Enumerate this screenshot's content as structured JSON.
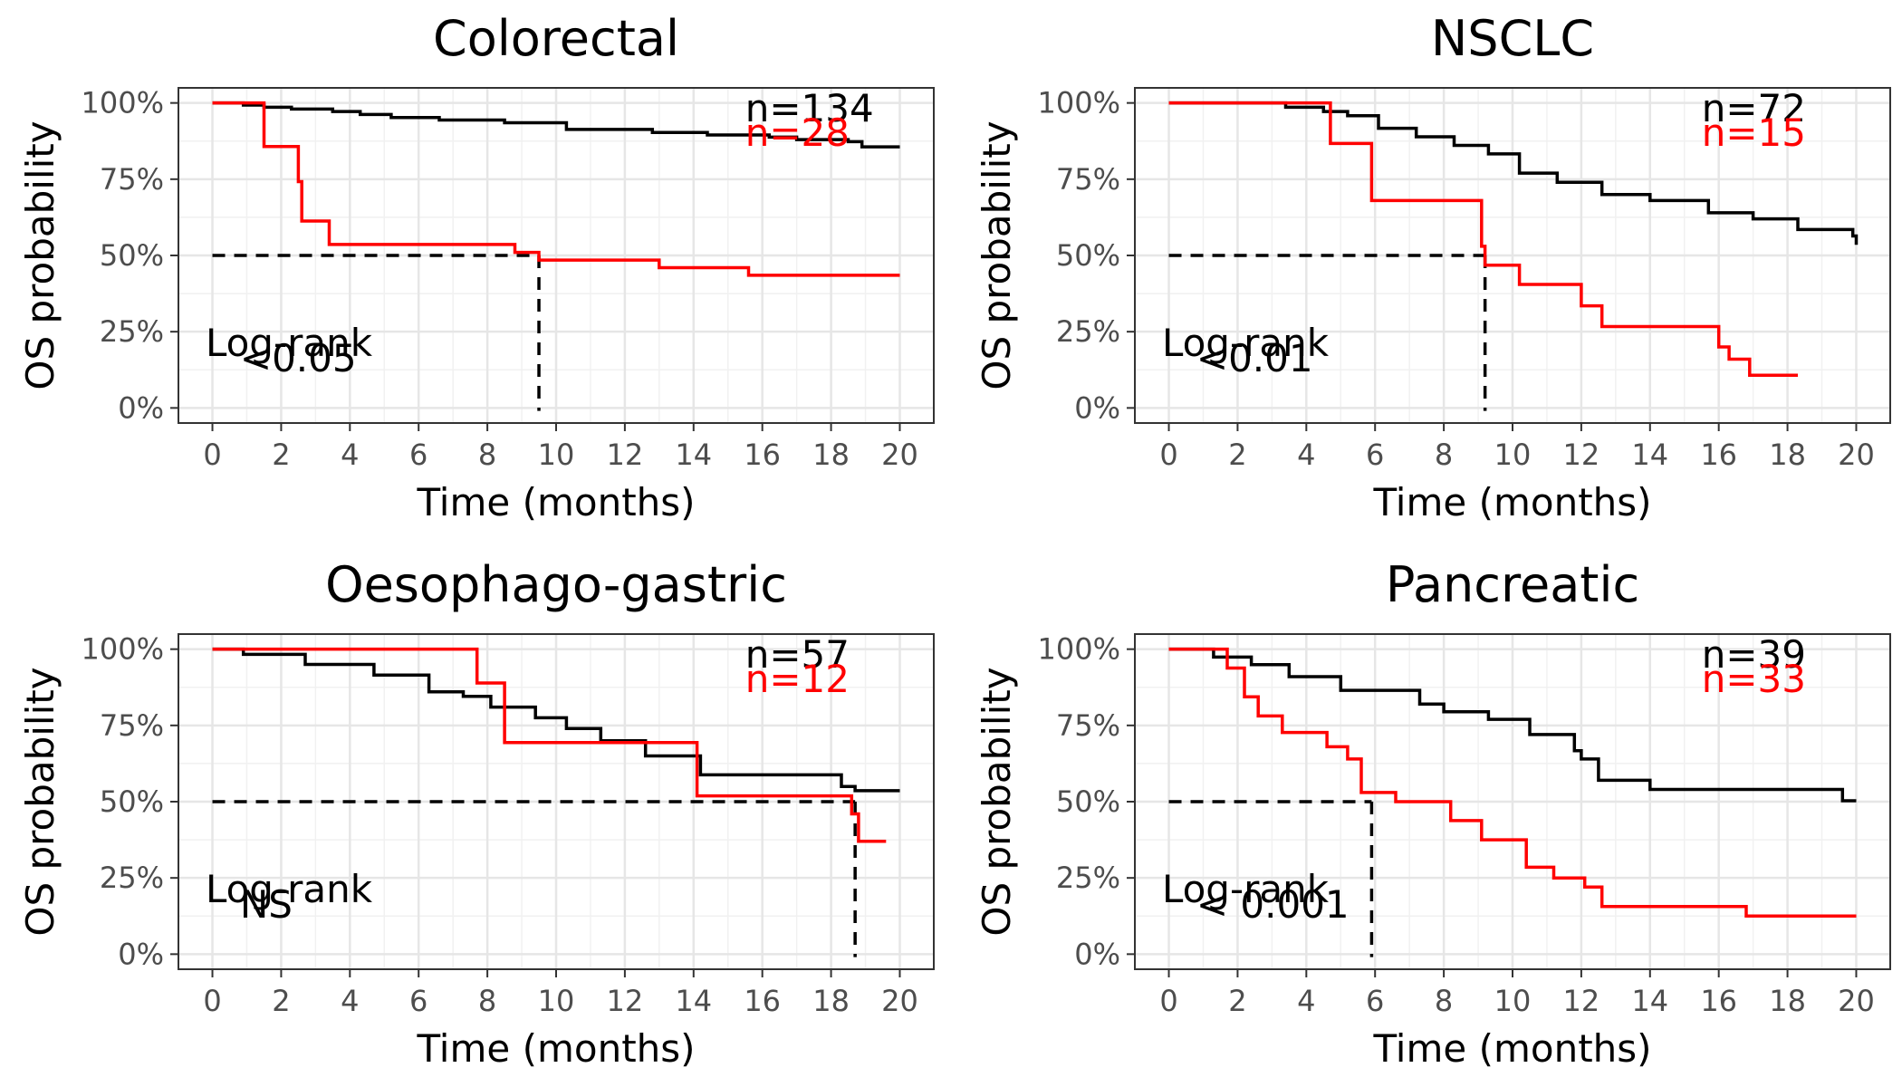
{
  "chart_data": [
    {
      "type": "line",
      "title": "Colorectal",
      "xlabel": "Time (months)",
      "ylabel": "OS probability",
      "x_ticks": [
        "0",
        "2",
        "4",
        "6",
        "8",
        "10",
        "12",
        "14",
        "16",
        "18",
        "20"
      ],
      "y_ticks": [
        "0%",
        "25%",
        "50%",
        "75%",
        "100%"
      ],
      "xlim": [
        0,
        20
      ],
      "ylim": [
        0,
        100
      ],
      "grid": true,
      "annotations": {
        "test": "Log-rank",
        "pvalue": "<0.05",
        "n_black": "n=134",
        "n_red": "n=28"
      },
      "median_line": {
        "y": 50,
        "x_end": 9.5
      },
      "series": [
        {
          "color": "#000000",
          "x": [
            0,
            0.9,
            1.5,
            2.3,
            3.5,
            4.3,
            5.2,
            6.6,
            8.5,
            10.3,
            12.8,
            14.4,
            16.2,
            17.0,
            18.5,
            18.9,
            20.0
          ],
          "y": [
            100,
            99.3,
            98.6,
            98,
            97.2,
            96.2,
            95.2,
            94.4,
            93.5,
            91.3,
            90.3,
            89.5,
            88.8,
            88,
            87.3,
            85.6,
            85.6
          ]
        },
        {
          "color": "#ff0000",
          "x": [
            0,
            1.5,
            2.5,
            2.6,
            3.4,
            8.8,
            9.5,
            13.0,
            15.6,
            20.0
          ],
          "y": [
            100,
            85.7,
            74.2,
            61.3,
            53.6,
            51.0,
            48.5,
            46.0,
            43.5,
            43.5
          ]
        }
      ]
    },
    {
      "type": "line",
      "title": "NSCLC",
      "xlabel": "Time (months)",
      "ylabel": "OS probability",
      "x_ticks": [
        "0",
        "2",
        "4",
        "6",
        "8",
        "10",
        "12",
        "14",
        "16",
        "18",
        "20"
      ],
      "y_ticks": [
        "0%",
        "25%",
        "50%",
        "75%",
        "100%"
      ],
      "xlim": [
        0,
        20
      ],
      "ylim": [
        0,
        100
      ],
      "grid": true,
      "annotations": {
        "test": "Log-rank",
        "pvalue": "<0.01",
        "n_black": "n=72",
        "n_red": "n=15"
      },
      "median_line": {
        "y": 50,
        "x_end": 9.2
      },
      "series": [
        {
          "color": "#000000",
          "x": [
            0,
            3.4,
            4.5,
            5.2,
            6.1,
            7.2,
            8.3,
            9.3,
            10.2,
            11.3,
            12.6,
            14.0,
            15.7,
            17.0,
            18.3,
            19.9,
            20.0
          ],
          "y": [
            100,
            98.6,
            97.2,
            95.8,
            91.7,
            88.9,
            86.1,
            83.3,
            77.0,
            74.0,
            70.0,
            68.0,
            64.0,
            62.0,
            58.5,
            56.4,
            53.5
          ]
        },
        {
          "color": "#ff0000",
          "x": [
            0,
            4.7,
            5.9,
            9.1,
            9.2,
            10.2,
            12.0,
            12.6,
            16.0,
            16.3,
            16.9,
            18.3
          ],
          "y": [
            100,
            86.7,
            68.0,
            53.0,
            46.8,
            40.5,
            33.5,
            26.7,
            20.0,
            16.0,
            10.7,
            10.7
          ]
        }
      ]
    },
    {
      "type": "line",
      "title": "Oesophago-gastric",
      "xlabel": "Time (months)",
      "ylabel": "OS probability",
      "x_ticks": [
        "0",
        "2",
        "4",
        "6",
        "8",
        "10",
        "12",
        "14",
        "16",
        "18",
        "20"
      ],
      "y_ticks": [
        "0%",
        "25%",
        "50%",
        "75%",
        "100%"
      ],
      "xlim": [
        0,
        20
      ],
      "ylim": [
        0,
        100
      ],
      "grid": true,
      "annotations": {
        "test": "Log-rank",
        "pvalue": "NS",
        "n_black": "n=57",
        "n_red": "n=12"
      },
      "median_line": {
        "y": 50,
        "x_end": 18.7
      },
      "series": [
        {
          "color": "#000000",
          "x": [
            0,
            0.9,
            2.7,
            4.7,
            6.3,
            7.3,
            8.1,
            9.4,
            10.3,
            11.3,
            12.6,
            14.2,
            18.3,
            18.7,
            20.0
          ],
          "y": [
            100,
            98.3,
            95.0,
            91.5,
            86.0,
            84.5,
            81.0,
            77.5,
            74.0,
            70.0,
            65.0,
            58.8,
            55.0,
            53.6,
            53.6
          ]
        },
        {
          "color": "#ff0000",
          "x": [
            0,
            7.7,
            8.5,
            14.1,
            18.6,
            18.8,
            19.6
          ],
          "y": [
            100,
            88.9,
            69.4,
            51.9,
            46.0,
            37.0,
            37.0
          ]
        }
      ]
    },
    {
      "type": "line",
      "title": "Pancreatic",
      "xlabel": "Time (months)",
      "ylabel": "OS probability",
      "x_ticks": [
        "0",
        "2",
        "4",
        "6",
        "8",
        "10",
        "12",
        "14",
        "16",
        "18",
        "20"
      ],
      "y_ticks": [
        "0%",
        "25%",
        "50%",
        "75%",
        "100%"
      ],
      "xlim": [
        0,
        20
      ],
      "ylim": [
        0,
        100
      ],
      "grid": true,
      "annotations": {
        "test": "Log-rank",
        "pvalue": "< 0.001",
        "n_black": "n=39",
        "n_red": "n=33"
      },
      "median_line": {
        "y": 50,
        "x_end": 5.9
      },
      "series": [
        {
          "color": "#000000",
          "x": [
            0,
            1.3,
            2.4,
            3.5,
            5.0,
            7.3,
            8.0,
            9.3,
            10.5,
            11.8,
            12.0,
            12.5,
            14.0,
            19.6,
            20.0
          ],
          "y": [
            100,
            97.4,
            94.9,
            91.0,
            86.5,
            82.0,
            79.5,
            77.0,
            72.0,
            66.7,
            64.0,
            57.0,
            54.0,
            50.3,
            50.3
          ]
        },
        {
          "color": "#ff0000",
          "x": [
            0,
            1.7,
            2.2,
            2.6,
            3.3,
            4.6,
            5.2,
            5.6,
            6.6,
            8.2,
            9.1,
            10.4,
            11.2,
            12.1,
            12.6,
            16.8,
            20.0
          ],
          "y": [
            100,
            93.8,
            84.4,
            78.1,
            72.7,
            68.0,
            64.0,
            53.0,
            50.0,
            43.8,
            37.5,
            28.5,
            25.0,
            22.0,
            15.6,
            12.5,
            12.5
          ]
        }
      ]
    }
  ]
}
